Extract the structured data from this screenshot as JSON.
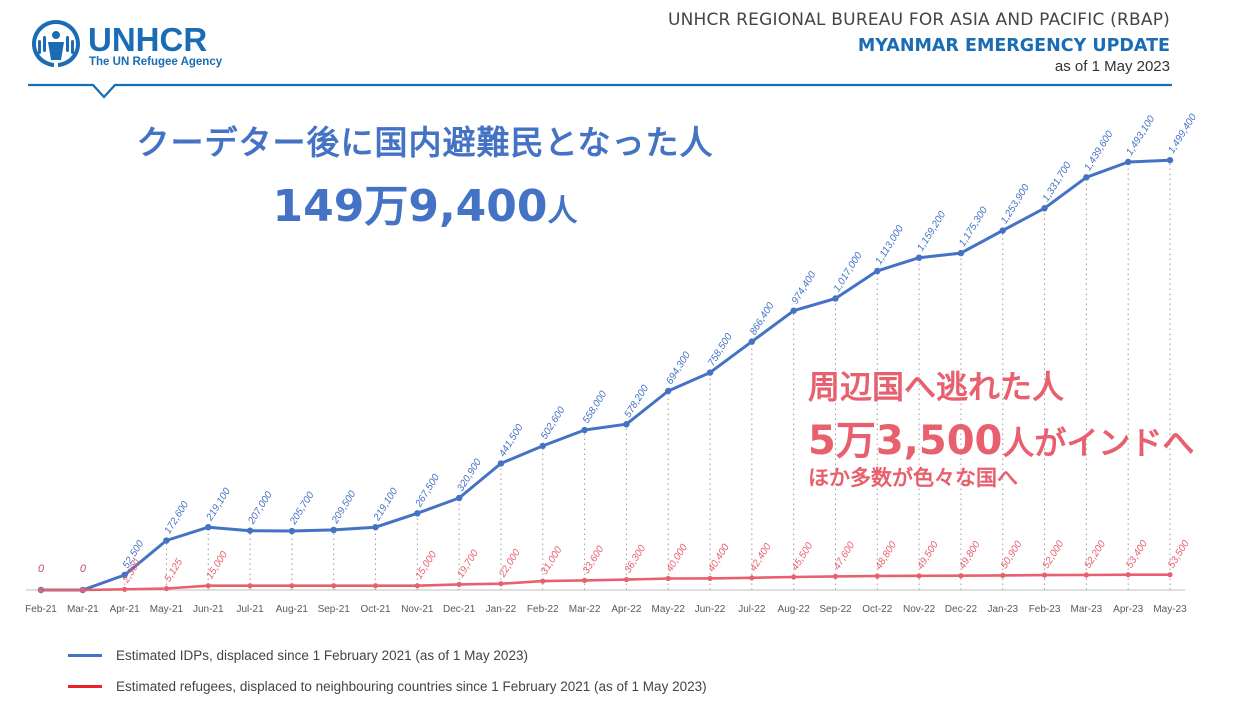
{
  "header": {
    "logo_text": "UNHCR",
    "logo_subtitle": "The UN Refugee Agency",
    "org_line": "UNHCR REGIONAL BUREAU FOR ASIA AND PACIFIC (RBAP)",
    "update_title": "MYANMAR EMERGENCY UPDATE",
    "as_of": "as of 1 May 2023"
  },
  "annotations": {
    "idp_title": "クーデター後に国内避難民となった人",
    "idp_total_number": "149万9,400",
    "idp_total_unit": "人",
    "refugee_title": "周辺国へ逃れた人",
    "refugee_total_number": "5万3,500",
    "refugee_total_suffix": "人がインドへ",
    "refugee_sub": "ほか多数が色々な国へ"
  },
  "colors": {
    "idp": "#4472c4",
    "refugee": "#e8606d",
    "brand_blue": "#1a6cb4",
    "grid": "#9a9a9a"
  },
  "chart_data": {
    "type": "line",
    "categories": [
      "Feb-21",
      "Mar-21",
      "Apr-21",
      "May-21",
      "Jun-21",
      "Jul-21",
      "Aug-21",
      "Sep-21",
      "Oct-21",
      "Nov-21",
      "Dec-21",
      "Jan-22",
      "Feb-22",
      "Mar-22",
      "Apr-22",
      "May-22",
      "Jun-22",
      "Jul-22",
      "Aug-22",
      "Sep-22",
      "Oct-22",
      "Nov-22",
      "Dec-22",
      "Jan-23",
      "Feb-23",
      "Mar-23",
      "Apr-23",
      "May-23"
    ],
    "series": [
      {
        "name": "Estimated IDPs, displaced since 1 February 2021 (as of 1 May 2023)",
        "values": [
          0,
          0,
          52500,
          172600,
          219100,
          207000,
          205700,
          209500,
          219100,
          267500,
          320900,
          441500,
          502600,
          558000,
          578200,
          694300,
          758500,
          866400,
          974400,
          1017000,
          1113000,
          1159200,
          1175300,
          1253900,
          1331700,
          1439600,
          1493100,
          1499400
        ],
        "labels": [
          "0",
          "0",
          "52,500",
          "172,600",
          "219,100",
          "207,000",
          "205,700",
          "209,500",
          "219,100",
          "267,500",
          "320,900",
          "441,500",
          "502,600",
          "558,000",
          "578,200",
          "694,300",
          "758,500",
          "866,400",
          "974,400",
          "1,017,000",
          "1,113,000",
          "1,159,200",
          "1,175,300",
          "1,253,900",
          "1,331,700",
          "1,439,600",
          "1,493,100",
          "1,499,400"
        ]
      },
      {
        "name": "Estimated refugees, displaced to neighbouring countries since 1 February 2021 (as of 1 May 2023)",
        "values": [
          0,
          0,
          2300,
          5125,
          15000,
          15000,
          15000,
          15000,
          15000,
          15000,
          19700,
          22000,
          31000,
          33600,
          36300,
          40000,
          40400,
          42400,
          45500,
          47600,
          48800,
          49500,
          49800,
          50900,
          52000,
          52200,
          53400,
          53500
        ],
        "labels": [
          "0",
          "0",
          "2,300",
          "5,125",
          "15,000",
          "",
          "",
          "",
          "",
          "15,000",
          "19,700",
          "22,000",
          "31,000",
          "33,600",
          "36,300",
          "40,000",
          "40,400",
          "42,400",
          "45,500",
          "47,600",
          "48,800",
          "49,500",
          "49,800",
          "50,900",
          "52,000",
          "52,200",
          "53,400",
          "53,500"
        ]
      }
    ],
    "ylim": [
      0,
      1500000
    ],
    "grid": "vertical-dotted",
    "legend_position": "bottom-left"
  }
}
